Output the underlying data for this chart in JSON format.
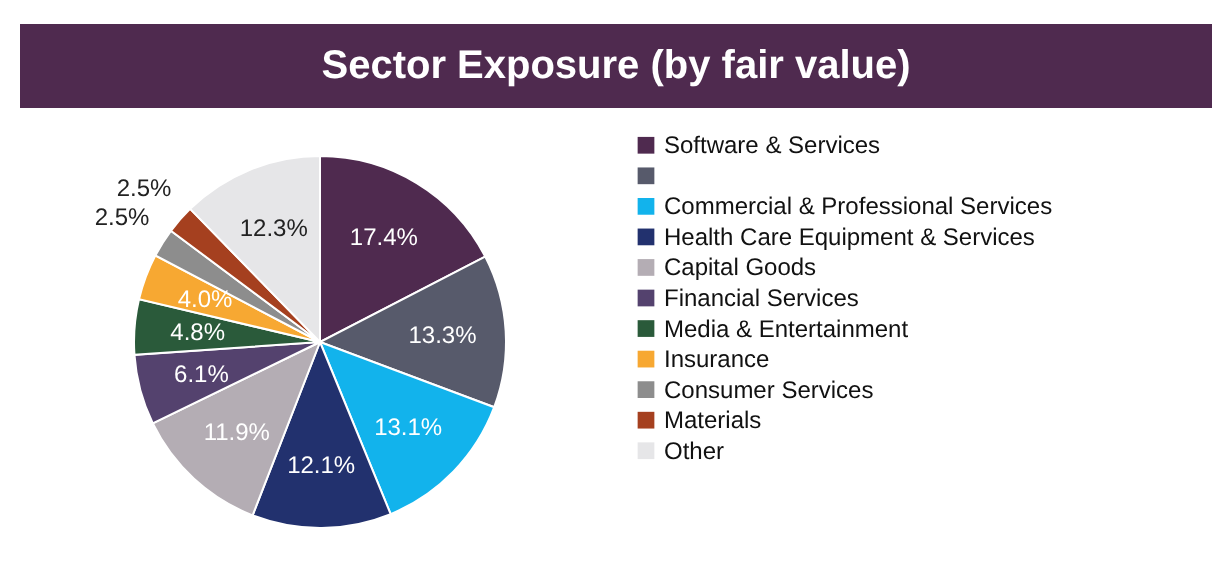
{
  "chart_data": {
    "type": "pie",
    "title": "Sector Exposure (by fair value)",
    "categories": [
      "Software & Services",
      null,
      "Commercial & Professional Services",
      "Health Care Equipment & Services",
      "Capital Goods",
      "Financial Services",
      "Media & Entertainment",
      "Insurance",
      "Consumer Services",
      "Materials",
      "Other"
    ],
    "values": [
      17.4,
      13.3,
      13.1,
      12.1,
      11.9,
      6.1,
      4.8,
      4.0,
      2.5,
      2.5,
      12.3
    ],
    "value_labels": [
      "17.4%",
      "13.3%",
      "13.1%",
      "12.1%",
      "11.9%",
      "6.1%",
      "4.8%",
      "4.0%",
      "2.5%",
      "2.5%",
      "12.3%"
    ],
    "colors": [
      "#4f2a4f",
      "#575a6b",
      "#12b3ec",
      "#22316e",
      "#b4adb4",
      "#54426e",
      "#2a5a3a",
      "#f7a832",
      "#8d8d8d",
      "#a5401f",
      "#e6e6e8"
    ],
    "legend": "right"
  }
}
